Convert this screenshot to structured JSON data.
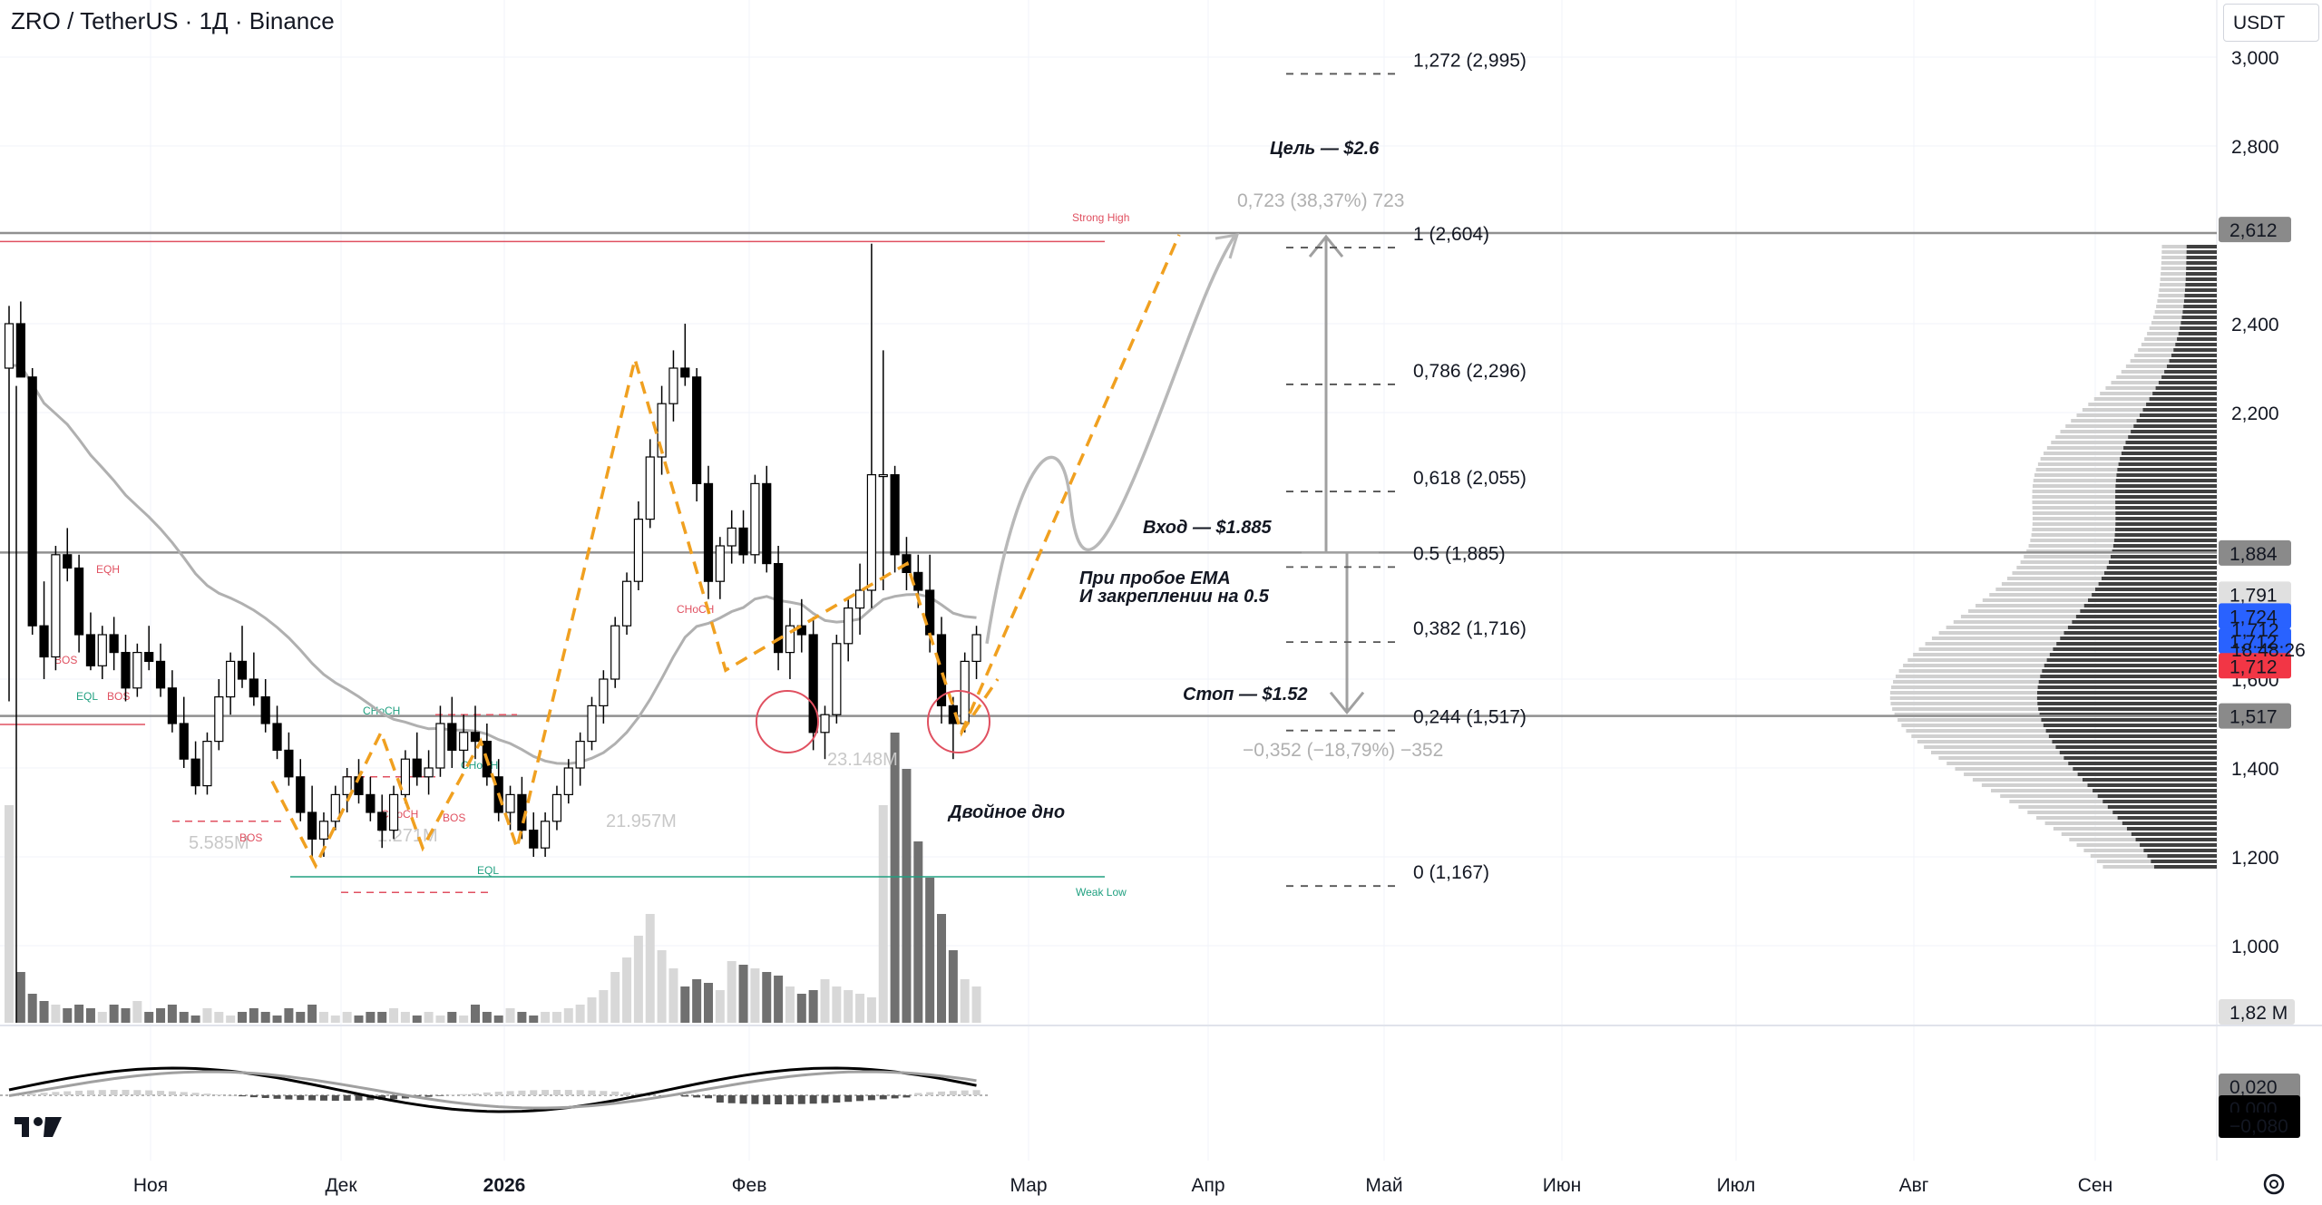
{
  "header": {
    "title": "ZRO / TetherUS · 1Д · Binance",
    "currency": "USDT"
  },
  "chart_data": {
    "type": "candlestick",
    "y_axis_ticks": [
      "3,000",
      "2,800",
      "2,400",
      "2,200",
      "1,600",
      "1,400",
      "1,200",
      "1,000"
    ],
    "y_axis_tick_values": [
      3.0,
      2.8,
      2.4,
      2.2,
      1.6,
      1.4,
      1.2,
      1.0
    ],
    "x_axis_labels": [
      "Ноя",
      "Дек",
      "2026",
      "Фев",
      "Мар",
      "Апр",
      "Май",
      "Июн",
      "Июл",
      "Авг",
      "Сен"
    ],
    "price_badges": [
      {
        "label": "2,612",
        "value": 2.612,
        "bg": "#8a8a8a",
        "fg": "#ffffff"
      },
      {
        "label": "1,884",
        "value": 1.884,
        "bg": "#8a8a8a",
        "fg": "#ffffff"
      },
      {
        "label": "1,791",
        "value": 1.791,
        "bg": "#e0e0e0",
        "fg": "#131722"
      },
      {
        "label": "1,724",
        "value": 1.742,
        "bg": "#2962ff",
        "fg": "#ffffff"
      },
      {
        "label": "1,712",
        "value": 1.686,
        "bg": "#2962ff",
        "fg": "#ffffff"
      },
      {
        "label": "1,712",
        "value": 1.63,
        "bg": "#f23645",
        "fg": "#ffffff"
      },
      {
        "label": "1,517",
        "value": 1.517,
        "bg": "#8a8a8a",
        "fg": "#ffffff"
      }
    ],
    "last_price": "1,712",
    "countdown": "18:48:26",
    "volume_badge": "1,82 M",
    "macd_badges": [
      {
        "label": "0,020",
        "bg": "#8a8a8a",
        "fg": "#ffffff"
      },
      {
        "label": "0,000",
        "bg": "#000000",
        "fg": "#ffffff"
      },
      {
        "label": "−0,080",
        "bg": "#000000",
        "fg": "#ffffff"
      }
    ],
    "fib_levels": [
      {
        "label": "1,272 (2,995)",
        "value": 2.995
      },
      {
        "label": "1 (2,604)",
        "value": 2.604
      },
      {
        "label": "0,786 (2,296)",
        "value": 2.296
      },
      {
        "label": "0,618 (2,055)",
        "value": 2.055
      },
      {
        "label": "0.5 (1,885)",
        "value": 1.885
      },
      {
        "label": "0,382 (1,716)",
        "value": 1.716
      },
      {
        "label": "0,244 (1,517)",
        "value": 1.517
      },
      {
        "label": "0 (1,167)",
        "value": 1.167
      }
    ],
    "annotations": {
      "target": "Цель — $2.6",
      "entry": "Вход — $1.885",
      "condition_line1": "При пробое EMA",
      "condition_line2": "И закреплении на 0.5",
      "stop": "Стоп — $1.52",
      "double_bottom": "Двойное дно",
      "measure_up": "0,723 (38,37%) 723",
      "measure_down": "−0,352 (−18,79%) −352"
    },
    "smc_labels": {
      "strong_high": "Strong High",
      "weak_low": "Weak Low",
      "eqh": "EQH",
      "eql": "EQL",
      "bos": "BOS",
      "choch": "CHoCH"
    },
    "volume_labels": [
      "5.585M",
      "1.271M",
      "21.957M",
      "23.148M"
    ],
    "reference_lines": [
      2.604,
      1.885,
      1.517
    ],
    "ema_line_color": "#b0b0b0",
    "projection_color": "#f0a020",
    "colors": {
      "up": "#ffffff",
      "down": "#000000",
      "red": "#e05060",
      "green": "#20a080"
    },
    "candles": [
      [
        2.3,
        2.44,
        1.55,
        2.4
      ],
      [
        2.4,
        2.45,
        2.28,
        2.28
      ],
      [
        2.28,
        2.3,
        1.7,
        1.72
      ],
      [
        1.72,
        1.82,
        1.6,
        1.65
      ],
      [
        1.65,
        1.9,
        1.62,
        1.88
      ],
      [
        1.88,
        1.94,
        1.82,
        1.85
      ],
      [
        1.85,
        1.88,
        1.66,
        1.7
      ],
      [
        1.7,
        1.75,
        1.62,
        1.63
      ],
      [
        1.63,
        1.72,
        1.6,
        1.7
      ],
      [
        1.7,
        1.74,
        1.62,
        1.66
      ],
      [
        1.66,
        1.7,
        1.55,
        1.58
      ],
      [
        1.58,
        1.68,
        1.56,
        1.66
      ],
      [
        1.66,
        1.72,
        1.62,
        1.64
      ],
      [
        1.64,
        1.68,
        1.56,
        1.58
      ],
      [
        1.58,
        1.62,
        1.48,
        1.5
      ],
      [
        1.5,
        1.56,
        1.4,
        1.42
      ],
      [
        1.42,
        1.46,
        1.34,
        1.36
      ],
      [
        1.36,
        1.48,
        1.34,
        1.46
      ],
      [
        1.46,
        1.6,
        1.44,
        1.56
      ],
      [
        1.56,
        1.66,
        1.52,
        1.64
      ],
      [
        1.64,
        1.72,
        1.58,
        1.6
      ],
      [
        1.6,
        1.66,
        1.54,
        1.56
      ],
      [
        1.56,
        1.6,
        1.48,
        1.5
      ],
      [
        1.5,
        1.54,
        1.42,
        1.44
      ],
      [
        1.44,
        1.48,
        1.36,
        1.38
      ],
      [
        1.38,
        1.42,
        1.28,
        1.3
      ],
      [
        1.3,
        1.36,
        1.2,
        1.24
      ],
      [
        1.24,
        1.3,
        1.2,
        1.28
      ],
      [
        1.28,
        1.36,
        1.26,
        1.34
      ],
      [
        1.34,
        1.4,
        1.3,
        1.38
      ],
      [
        1.38,
        1.42,
        1.32,
        1.34
      ],
      [
        1.34,
        1.38,
        1.28,
        1.3
      ],
      [
        1.3,
        1.34,
        1.22,
        1.26
      ],
      [
        1.26,
        1.36,
        1.24,
        1.34
      ],
      [
        1.34,
        1.44,
        1.32,
        1.42
      ],
      [
        1.42,
        1.48,
        1.36,
        1.38
      ],
      [
        1.38,
        1.44,
        1.34,
        1.4
      ],
      [
        1.4,
        1.54,
        1.38,
        1.5
      ],
      [
        1.5,
        1.56,
        1.4,
        1.44
      ],
      [
        1.44,
        1.52,
        1.4,
        1.48
      ],
      [
        1.48,
        1.54,
        1.42,
        1.46
      ],
      [
        1.46,
        1.5,
        1.36,
        1.38
      ],
      [
        1.38,
        1.42,
        1.28,
        1.3
      ],
      [
        1.3,
        1.36,
        1.26,
        1.34
      ],
      [
        1.34,
        1.38,
        1.24,
        1.26
      ],
      [
        1.26,
        1.3,
        1.2,
        1.22
      ],
      [
        1.22,
        1.3,
        1.2,
        1.28
      ],
      [
        1.28,
        1.36,
        1.26,
        1.34
      ],
      [
        1.34,
        1.42,
        1.32,
        1.4
      ],
      [
        1.4,
        1.48,
        1.36,
        1.46
      ],
      [
        1.46,
        1.56,
        1.44,
        1.54
      ],
      [
        1.54,
        1.62,
        1.5,
        1.6
      ],
      [
        1.6,
        1.74,
        1.58,
        1.72
      ],
      [
        1.72,
        1.84,
        1.7,
        1.82
      ],
      [
        1.82,
        2.0,
        1.8,
        1.96
      ],
      [
        1.96,
        2.14,
        1.94,
        2.1
      ],
      [
        2.1,
        2.26,
        2.06,
        2.22
      ],
      [
        2.22,
        2.34,
        2.18,
        2.3
      ],
      [
        2.3,
        2.4,
        2.26,
        2.28
      ],
      [
        2.28,
        2.3,
        2.0,
        2.04
      ],
      [
        2.04,
        2.08,
        1.78,
        1.82
      ],
      [
        1.82,
        1.92,
        1.78,
        1.9
      ],
      [
        1.9,
        1.98,
        1.86,
        1.94
      ],
      [
        1.94,
        1.98,
        1.86,
        1.88
      ],
      [
        1.88,
        2.06,
        1.86,
        2.04
      ],
      [
        2.04,
        2.08,
        1.84,
        1.86
      ],
      [
        1.86,
        1.9,
        1.62,
        1.66
      ],
      [
        1.66,
        1.76,
        1.6,
        1.72
      ],
      [
        1.72,
        1.78,
        1.66,
        1.7
      ],
      [
        1.7,
        1.74,
        1.44,
        1.48
      ],
      [
        1.48,
        1.54,
        1.42,
        1.52
      ],
      [
        1.52,
        1.7,
        1.5,
        1.68
      ],
      [
        1.68,
        1.78,
        1.64,
        1.76
      ],
      [
        1.76,
        1.86,
        1.7,
        1.8
      ],
      [
        1.8,
        2.58,
        1.76,
        2.06
      ],
      [
        2.06,
        2.34,
        1.8,
        2.06
      ],
      [
        2.06,
        2.08,
        1.84,
        1.88
      ],
      [
        1.88,
        1.92,
        1.8,
        1.84
      ],
      [
        1.84,
        1.88,
        1.76,
        1.8
      ],
      [
        1.8,
        1.88,
        1.66,
        1.7
      ],
      [
        1.7,
        1.74,
        1.5,
        1.54
      ],
      [
        1.54,
        1.56,
        1.42,
        1.5
      ],
      [
        1.5,
        1.66,
        1.48,
        1.64
      ],
      [
        1.64,
        1.72,
        1.6,
        1.7
      ]
    ]
  }
}
